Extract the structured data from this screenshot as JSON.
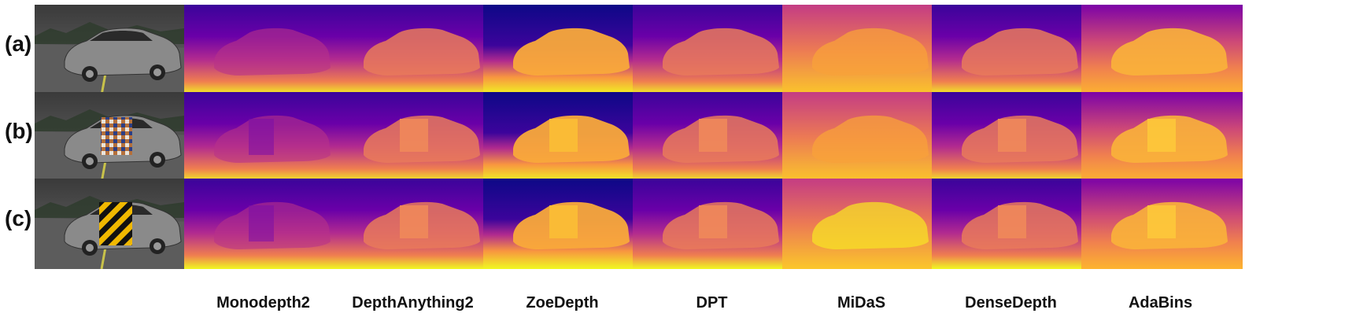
{
  "rows": [
    {
      "label": "(a)",
      "patch": "none"
    },
    {
      "label": "(b)",
      "patch": "checker"
    },
    {
      "label": "(c)",
      "patch": "stripes"
    }
  ],
  "models": [
    "Monodepth2",
    "DepthAnything2",
    "ZoeDepth",
    "DPT",
    "MiDaS",
    "DenseDepth",
    "AdaBins"
  ],
  "colormap": {
    "name": "plasma",
    "far": "#0d0887",
    "mid": "#cc4778",
    "near": "#f0f921",
    "orange": "#f89540"
  }
}
